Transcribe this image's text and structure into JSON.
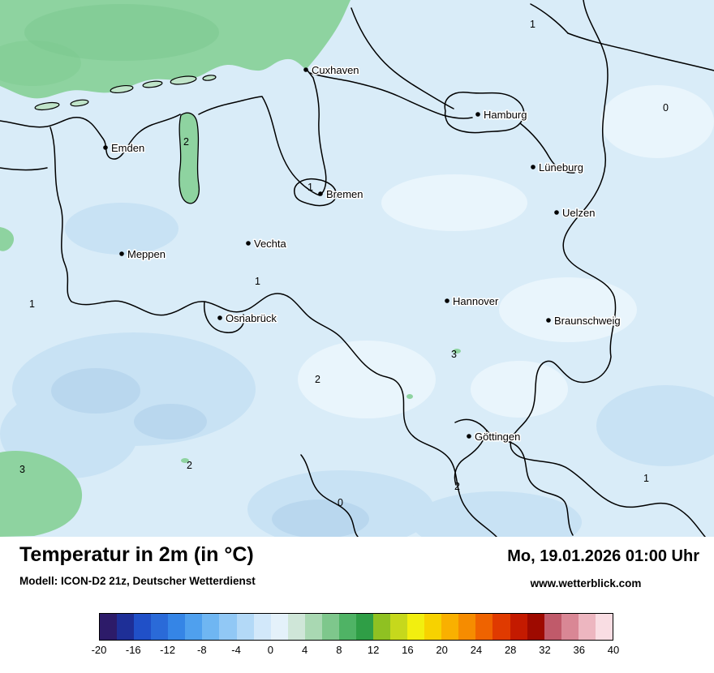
{
  "map": {
    "colors": {
      "base": "#d9ecf8",
      "sea": "#8ed3a0",
      "sea_dark": "#7cc98f",
      "island": "#bfe4c9",
      "cold_patch": "#c8e2f4",
      "colder_patch": "#b9d7ee",
      "warm_patch": "#e9f5fc",
      "border": "#000000"
    },
    "cities": [
      {
        "name": "Cuxhaven"
      },
      {
        "name": "Hamburg"
      },
      {
        "name": "Emden"
      },
      {
        "name": "Lüneburg"
      },
      {
        "name": "Bremen"
      },
      {
        "name": "Uelzen"
      },
      {
        "name": "Vechta"
      },
      {
        "name": "Meppen"
      },
      {
        "name": "Hannover"
      },
      {
        "name": "Osnabrück"
      },
      {
        "name": "Braunschweig"
      },
      {
        "name": "Göttingen"
      }
    ],
    "temps": [
      {
        "value": "1"
      },
      {
        "value": "0"
      },
      {
        "value": "2"
      },
      {
        "value": "1"
      },
      {
        "value": "1"
      },
      {
        "value": "1"
      },
      {
        "value": "3"
      },
      {
        "value": "2"
      },
      {
        "value": "3"
      },
      {
        "value": "2"
      },
      {
        "value": "2"
      },
      {
        "value": "1"
      },
      {
        "value": "0"
      }
    ]
  },
  "footer": {
    "title": "Temperatur in 2m (in °C)",
    "model": "Modell: ICON-D2 21z, Deutscher Wetterdienst",
    "datetime": "Mo, 19.01.2026 01:00 Uhr",
    "website": "www.wetterblick.com"
  },
  "scale": {
    "unit": "°C",
    "min": -20,
    "max": 40,
    "step": 2,
    "ticks": [
      "-20",
      "-16",
      "-12",
      "-8",
      "-4",
      "0",
      "4",
      "8",
      "12",
      "16",
      "20",
      "24",
      "28",
      "32",
      "36",
      "40"
    ],
    "colors": [
      "#2d1b69",
      "#1e2f97",
      "#2050c8",
      "#2a6ad8",
      "#3585e6",
      "#4fa0ee",
      "#6fb6f2",
      "#91c8f5",
      "#b3d9f7",
      "#d2e8fa",
      "#e4f1fa",
      "#cfe6d8",
      "#a9d8b2",
      "#7ec78c",
      "#4fb365",
      "#2f9e46",
      "#8fc122",
      "#c6d81c",
      "#f2ef0f",
      "#f7d200",
      "#f9b000",
      "#f68c00",
      "#ef6300",
      "#e03a00",
      "#c41a00",
      "#9e0a00",
      "#c05a6a",
      "#d98795",
      "#edb6c0",
      "#f9dde3"
    ]
  }
}
